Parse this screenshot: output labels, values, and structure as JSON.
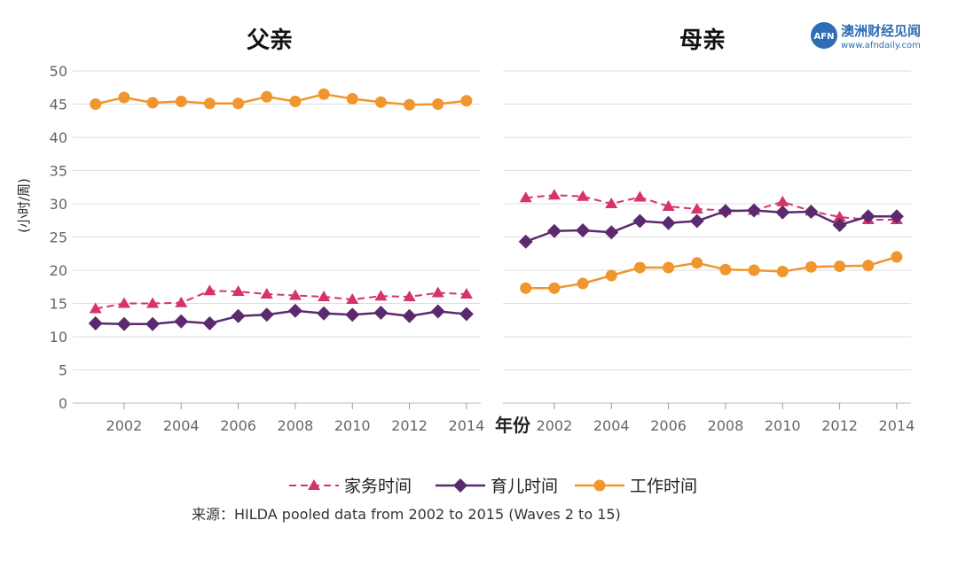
{
  "logo": {
    "badge": "AFN",
    "name": "澳洲财经见闻",
    "url": "www.afndaily.com"
  },
  "xlabel": "年份",
  "ylabel": "(小时/周)",
  "source": "来源：HILDA pooled data from 2002 to 2015 (Waves 2 to 15)",
  "colors": {
    "household": "#d6336c",
    "childcare": "#5b2a6e",
    "work": "#f0962e",
    "grid": "#dddddd"
  },
  "chart_data": [
    {
      "type": "line",
      "title": "父亲",
      "ylim": [
        0,
        50
      ],
      "yticks": [
        0,
        5,
        10,
        15,
        20,
        25,
        30,
        35,
        40,
        45,
        50
      ],
      "xlim": [
        2000.2,
        2014.5
      ],
      "xticks": [
        2002,
        2004,
        2006,
        2008,
        2010,
        2012,
        2014
      ],
      "x": [
        2001,
        2002,
        2003,
        2004,
        2005,
        2006,
        2007,
        2008,
        2009,
        2010,
        2011,
        2012,
        2013,
        2014
      ],
      "series": [
        {
          "key": "household",
          "name": "家务时间",
          "values": [
            14.2,
            15.0,
            15.0,
            15.1,
            16.9,
            16.8,
            16.4,
            16.2,
            16.0,
            15.6,
            16.1,
            16.0,
            16.6,
            16.4
          ]
        },
        {
          "key": "childcare",
          "name": "育儿时间",
          "values": [
            12.0,
            11.9,
            11.9,
            12.3,
            12.0,
            13.1,
            13.3,
            13.9,
            13.5,
            13.3,
            13.6,
            13.1,
            13.8,
            13.4
          ]
        },
        {
          "key": "work",
          "name": "工作时间",
          "values": [
            45.0,
            46.0,
            45.2,
            45.4,
            45.1,
            45.1,
            46.1,
            45.4,
            46.5,
            45.8,
            45.3,
            44.9,
            45.0,
            45.5
          ]
        }
      ]
    },
    {
      "type": "line",
      "title": "母亲",
      "ylim": [
        0,
        50
      ],
      "yticks": [
        0,
        5,
        10,
        15,
        20,
        25,
        30,
        35,
        40,
        45,
        50
      ],
      "xlim": [
        2000.2,
        2014.5
      ],
      "xticks": [
        2002,
        2004,
        2006,
        2008,
        2010,
        2012,
        2014
      ],
      "x": [
        2001,
        2002,
        2003,
        2004,
        2005,
        2006,
        2007,
        2008,
        2009,
        2010,
        2011,
        2012,
        2013,
        2014
      ],
      "series": [
        {
          "key": "household",
          "name": "家务时间",
          "values": [
            30.9,
            31.3,
            31.1,
            30.0,
            31.0,
            29.6,
            29.2,
            29.0,
            29.0,
            30.3,
            28.9,
            28.0,
            27.6,
            27.6
          ]
        },
        {
          "key": "childcare",
          "name": "育儿时间",
          "values": [
            24.3,
            25.9,
            26.0,
            25.7,
            27.4,
            27.1,
            27.4,
            28.9,
            29.0,
            28.7,
            28.8,
            26.8,
            28.1,
            28.1
          ]
        },
        {
          "key": "work",
          "name": "工作时间",
          "values": [
            17.3,
            17.3,
            18.0,
            19.2,
            20.4,
            20.4,
            21.1,
            20.1,
            20.0,
            19.8,
            20.5,
            20.6,
            20.7,
            22.0
          ]
        }
      ]
    }
  ],
  "legend": [
    {
      "key": "household",
      "label": "家务时间"
    },
    {
      "key": "childcare",
      "label": "育儿时间"
    },
    {
      "key": "work",
      "label": "工作时间"
    }
  ]
}
